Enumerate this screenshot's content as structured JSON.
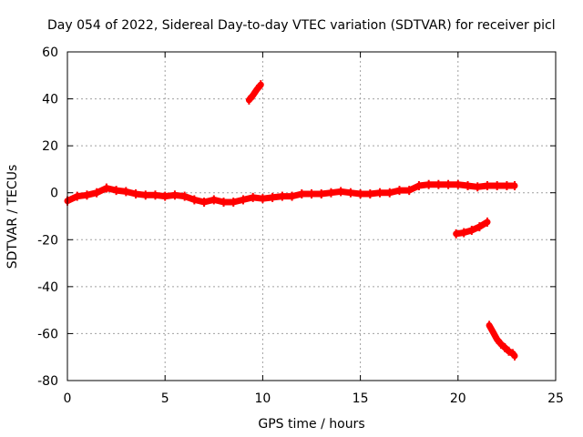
{
  "chart_data": {
    "type": "scatter",
    "title": "Day 054 of 2022, Sidereal Day-to-day VTEC variation (SDTVAR) for receiver picl",
    "xlabel": "GPS time / hours",
    "ylabel": "SDTVAR / TECUs",
    "xlim": [
      0,
      25
    ],
    "ylim": [
      -80,
      60
    ],
    "x_ticks": [
      0,
      5,
      10,
      15,
      20,
      25
    ],
    "y_ticks": [
      -80,
      -60,
      -40,
      -20,
      0,
      20,
      40,
      60
    ],
    "grid": true,
    "legend": "none",
    "series_color": "#ff0000",
    "series": [
      {
        "x": [
          0.0,
          0.5,
          1.0,
          1.5,
          2.0,
          2.5,
          3.0,
          3.5,
          4.0,
          4.5,
          5.0,
          5.5,
          6.0,
          6.5,
          7.0,
          7.5,
          8.0,
          8.5,
          9.0,
          9.5,
          10.0,
          10.5,
          11.0,
          11.5,
          12.0,
          12.5,
          13.0,
          13.5,
          14.0,
          14.5,
          15.0,
          15.5,
          16.0,
          16.5,
          17.0,
          17.5,
          18.0,
          18.5,
          19.0,
          19.5,
          20.0,
          20.5,
          21.0,
          21.5,
          22.0,
          22.5,
          22.9
        ],
        "y": [
          -3.5,
          -1.5,
          -1.0,
          0.0,
          2.0,
          1.0,
          0.5,
          -0.5,
          -1.0,
          -1.0,
          -1.5,
          -1.0,
          -1.5,
          -3.0,
          -4.0,
          -3.0,
          -4.0,
          -4.0,
          -3.0,
          -2.0,
          -2.5,
          -2.0,
          -1.5,
          -1.5,
          -0.5,
          -0.5,
          -0.5,
          0.0,
          0.5,
          0.0,
          -0.5,
          -0.5,
          0.0,
          0.0,
          1.0,
          1.0,
          3.0,
          3.5,
          3.5,
          3.5,
          3.5,
          3.0,
          2.5,
          3.0,
          3.0,
          3.0,
          3.0
        ]
      },
      {
        "x": [
          9.3,
          9.5,
          9.7,
          9.9
        ],
        "y": [
          39.5,
          41.5,
          44.0,
          46.0
        ]
      },
      {
        "x": [
          19.9,
          20.3,
          20.7,
          21.1,
          21.5
        ],
        "y": [
          -17.5,
          -17.0,
          -16.0,
          -14.5,
          -12.5
        ]
      },
      {
        "x": [
          21.6,
          21.8,
          22.0,
          22.2,
          22.4,
          22.6,
          22.8,
          22.9
        ],
        "y": [
          -56.5,
          -59.5,
          -62.5,
          -64.5,
          -66.0,
          -67.5,
          -68.5,
          -69.5
        ]
      }
    ]
  }
}
